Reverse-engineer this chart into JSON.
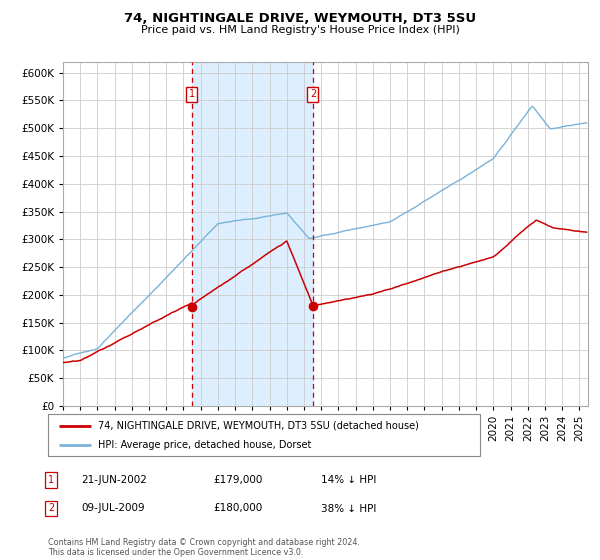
{
  "title": "74, NIGHTINGALE DRIVE, WEYMOUTH, DT3 5SU",
  "subtitle": "Price paid vs. HM Land Registry's House Price Index (HPI)",
  "xlim_start": 1995.0,
  "xlim_end": 2025.5,
  "ylim": [
    0,
    620000
  ],
  "yticks": [
    0,
    50000,
    100000,
    150000,
    200000,
    250000,
    300000,
    350000,
    400000,
    450000,
    500000,
    550000,
    600000
  ],
  "ytick_labels": [
    "£0",
    "£50K",
    "£100K",
    "£150K",
    "£200K",
    "£250K",
    "£300K",
    "£350K",
    "£400K",
    "£450K",
    "£500K",
    "£550K",
    "£600K"
  ],
  "hpi_color": "#7ab3d8",
  "price_color": "#cc0000",
  "sale1_date": 2002.47,
  "sale1_price": 179000,
  "sale2_date": 2009.52,
  "sale2_price": 180000,
  "shade_start": 2002.47,
  "shade_end": 2009.52,
  "shade_color": "#ddeeff",
  "vline_color": "#cc0000",
  "legend_price_label": "74, NIGHTINGALE DRIVE, WEYMOUTH, DT3 5SU (detached house)",
  "legend_hpi_label": "HPI: Average price, detached house, Dorset",
  "table_row1": [
    "1",
    "21-JUN-2002",
    "£179,000",
    "14% ↓ HPI"
  ],
  "table_row2": [
    "2",
    "09-JUL-2009",
    "£180,000",
    "38% ↓ HPI"
  ],
  "footer": "Contains HM Land Registry data © Crown copyright and database right 2024.\nThis data is licensed under the Open Government Licence v3.0.",
  "bg_color": "#ffffff",
  "grid_color": "#cccccc"
}
